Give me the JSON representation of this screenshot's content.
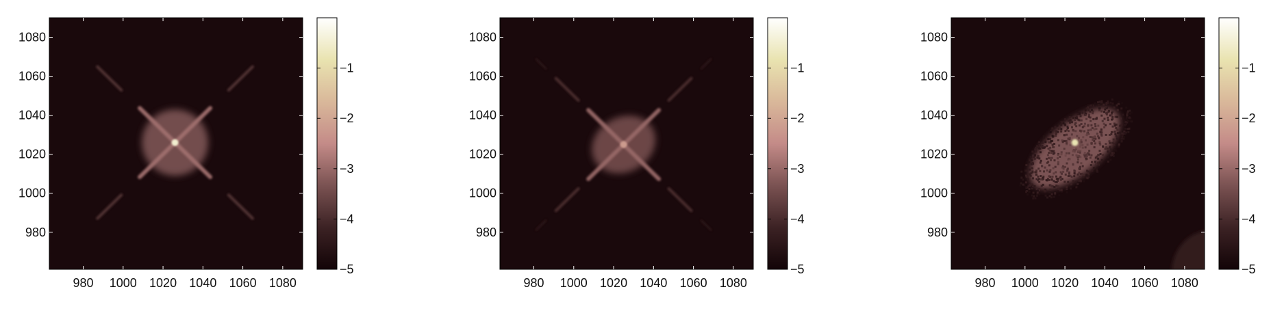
{
  "chart_data": [
    {
      "type": "heatmap",
      "title": "",
      "xlabel": "",
      "ylabel": "",
      "xlim": [
        963,
        1090
      ],
      "ylim": [
        961,
        1090
      ],
      "x_ticks": [
        980,
        1000,
        1020,
        1040,
        1060,
        1080
      ],
      "y_ticks": [
        980,
        1000,
        1020,
        1040,
        1060,
        1080
      ],
      "colorbar": {
        "range": [
          -5,
          0
        ],
        "ticks": [
          -1,
          -2,
          -3,
          -4,
          -5
        ],
        "tick_labels": [
          "−1",
          "−2",
          "−3",
          "−4",
          "−5"
        ]
      },
      "colormap": [
        "#120407",
        "#3c2224",
        "#7a5252",
        "#c48b88",
        "#d9b89a",
        "#e9e3b0",
        "#ffffff"
      ],
      "features": {
        "peak": {
          "x": 1026,
          "y": 1026,
          "value": -0.5
        },
        "halo": {
          "center": [
            1026,
            1026
          ],
          "rx": 17,
          "ry": 17,
          "rotation_deg": 0,
          "value": -3.3
        },
        "inner_arms": {
          "length": 25,
          "value": -2.9
        },
        "outer_arms": {
          "from": 38,
          "to": 55,
          "value": -3.8
        }
      }
    },
    {
      "type": "heatmap",
      "title": "",
      "xlabel": "",
      "ylabel": "",
      "xlim": [
        963,
        1090
      ],
      "ylim": [
        961,
        1090
      ],
      "x_ticks": [
        980,
        1000,
        1020,
        1040,
        1060,
        1080
      ],
      "y_ticks": [
        980,
        1000,
        1020,
        1040,
        1060,
        1080
      ],
      "colorbar": {
        "range": [
          -5,
          0
        ],
        "ticks": [
          -1,
          -2,
          -3,
          -4,
          -5
        ],
        "tick_labels": [
          "−1",
          "−2",
          "−3",
          "−4",
          "−5"
        ]
      },
      "colormap": [
        "#120407",
        "#3c2224",
        "#7a5252",
        "#c48b88",
        "#d9b89a",
        "#e9e3b0",
        "#ffffff"
      ],
      "features": {
        "peak": {
          "x": 1025,
          "y": 1025,
          "value": -2.2
        },
        "halo": {
          "center": [
            1025,
            1025
          ],
          "rx": 17,
          "ry": 14,
          "rotation_deg": -30,
          "value": -3.4
        },
        "inner_arms": {
          "length": 25,
          "value": -3.0
        },
        "outer_arms": {
          "from": 32,
          "to": 48,
          "value": -3.9
        },
        "far_arms": {
          "from": 55,
          "to": 62,
          "value": -4.4
        }
      }
    },
    {
      "type": "heatmap",
      "title": "",
      "xlabel": "",
      "ylabel": "",
      "xlim": [
        963,
        1090
      ],
      "ylim": [
        961,
        1090
      ],
      "x_ticks": [
        980,
        1000,
        1020,
        1040,
        1060,
        1080
      ],
      "y_ticks": [
        980,
        1000,
        1020,
        1040,
        1060,
        1080
      ],
      "colorbar": {
        "range": [
          -5,
          0
        ],
        "ticks": [
          -1,
          -2,
          -3,
          -4,
          -5
        ],
        "tick_labels": [
          "−1",
          "−2",
          "−3",
          "−4",
          "−5"
        ]
      },
      "colormap": [
        "#120407",
        "#3c2224",
        "#7a5252",
        "#c48b88",
        "#d9b89a",
        "#e9e3b0",
        "#ffffff"
      ],
      "features": {
        "peak": {
          "x": 1025,
          "y": 1026,
          "value": -0.8
        },
        "halo": {
          "center": [
            1025,
            1023
          ],
          "rx": 28,
          "ry": 13,
          "rotation_deg": -40,
          "value": -3.2,
          "noisy": true
        },
        "corner_patch": {
          "x": [
            1070,
            1090
          ],
          "y": [
            961,
            983
          ],
          "value": -4.4
        }
      }
    }
  ]
}
